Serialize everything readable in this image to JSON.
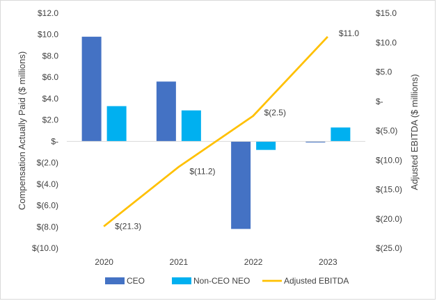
{
  "chart_data": {
    "type": "bar+line",
    "title": "",
    "categories": [
      "2020",
      "2021",
      "2022",
      "2023"
    ],
    "series": [
      {
        "name": "CEO",
        "type": "bar",
        "axis": "left",
        "color": "#4472C4",
        "values": [
          9.8,
          5.6,
          -8.2,
          -0.1
        ]
      },
      {
        "name": "Non-CEO NEO",
        "type": "bar",
        "axis": "left",
        "color": "#00B0F0",
        "values": [
          3.3,
          2.9,
          -0.8,
          1.3
        ]
      },
      {
        "name": "Adjusted EBITDA",
        "type": "line",
        "axis": "right",
        "color": "#FFC000",
        "values": [
          -21.3,
          -11.2,
          -2.5,
          11.0
        ],
        "labels": [
          "$(21.3)",
          "$(11.2)",
          "$(2.5)",
          "$11.0"
        ]
      }
    ],
    "left_axis": {
      "label": "Compensation Actually Paid ($ millions)",
      "ylim": [
        -10,
        12
      ],
      "ticks": [
        12,
        10,
        8,
        6,
        4,
        2,
        0,
        -2,
        -4,
        -6,
        -8,
        -10
      ],
      "tick_labels": [
        "$12.0",
        "$10.0",
        "$8.0",
        "$6.0",
        "$4.0",
        "$2.0",
        "$-",
        "$(2.0)",
        "$(4.0)",
        "$(6.0)",
        "$(8.0)",
        "$(10.0)"
      ]
    },
    "right_axis": {
      "label": "Adjusted EBITDA ($ millions)",
      "ylim": [
        -25,
        15
      ],
      "ticks": [
        15,
        10,
        5,
        0,
        -5,
        -10,
        -15,
        -20,
        -25
      ],
      "tick_labels": [
        "$15.0",
        "$10.0",
        "$5.0",
        "$-",
        "$(5.0)",
        "$(10.0)",
        "$(15.0)",
        "$(20.0)",
        "$(25.0)"
      ]
    },
    "legend_position": "bottom",
    "grid": false
  }
}
